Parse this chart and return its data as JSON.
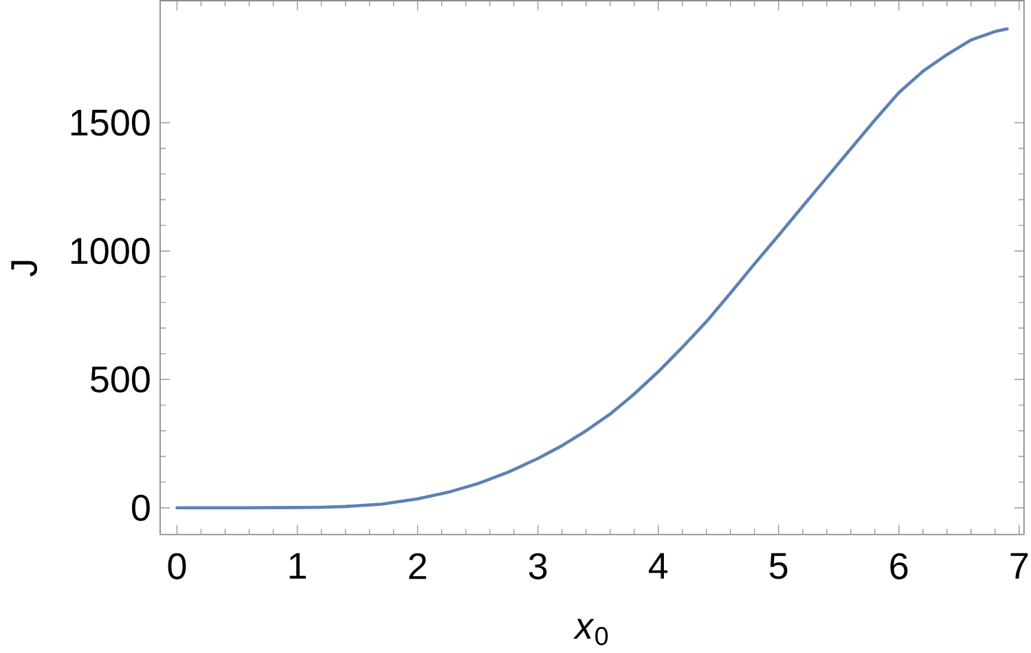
{
  "chart_data": {
    "type": "line",
    "xlabel": "*x*$_{0}$",
    "ylabel": "J",
    "x": [
      0,
      0.5,
      1.0,
      1.2,
      1.4,
      1.7,
      2.0,
      2.25,
      2.5,
      2.75,
      3.0,
      3.2,
      3.4,
      3.6,
      3.8,
      4.0,
      4.2,
      4.4,
      4.6,
      4.8,
      5.0,
      5.2,
      5.4,
      5.6,
      5.8,
      6.0,
      6.2,
      6.4,
      6.6,
      6.8,
      6.9
    ],
    "series": [
      {
        "color": "#5e81b5",
        "values": [
          0,
          0,
          1,
          2,
          5,
          14,
          35,
          60,
          94,
          138,
          192,
          242,
          300,
          365,
          443,
          530,
          625,
          725,
          836,
          950,
          1061,
          1174,
          1286,
          1398,
          1510,
          1617,
          1700,
          1765,
          1822,
          1855,
          1865
        ]
      }
    ],
    "xlim": [
      -0.14,
      7.04
    ],
    "ylim": [
      -104,
      1975
    ],
    "xticks": [
      0,
      1,
      2,
      3,
      4,
      5,
      6,
      7
    ],
    "yticks": [
      0,
      500,
      1000,
      1500
    ],
    "marker": "none",
    "line_style": "solid"
  }
}
